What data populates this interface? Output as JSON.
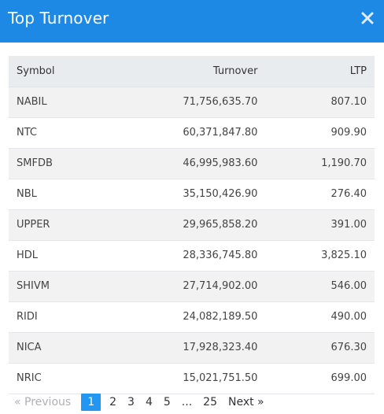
{
  "modal": {
    "title": "Top Turnover"
  },
  "table": {
    "headers": {
      "symbol": "Symbol",
      "turnover": "Turnover",
      "ltp": "LTP"
    },
    "rows": [
      {
        "symbol": "NABIL",
        "turnover": "71,756,635.70",
        "ltp": "807.10"
      },
      {
        "symbol": "NTC",
        "turnover": "60,371,847.80",
        "ltp": "909.90"
      },
      {
        "symbol": "SMFDB",
        "turnover": "46,995,983.60",
        "ltp": "1,190.70"
      },
      {
        "symbol": "NBL",
        "turnover": "35,150,426.90",
        "ltp": "276.40"
      },
      {
        "symbol": "UPPER",
        "turnover": "29,965,858.20",
        "ltp": "391.00"
      },
      {
        "symbol": "HDL",
        "turnover": "28,336,745.80",
        "ltp": "3,825.10"
      },
      {
        "symbol": "SHIVM",
        "turnover": "27,714,902.00",
        "ltp": "546.00"
      },
      {
        "symbol": "RIDI",
        "turnover": "24,082,189.50",
        "ltp": "490.00"
      },
      {
        "symbol": "NICA",
        "turnover": "17,928,323.40",
        "ltp": "676.30"
      },
      {
        "symbol": "NRIC",
        "turnover": "15,021,751.50",
        "ltp": "699.00"
      }
    ]
  },
  "pagination": {
    "previous": "« Previous",
    "next": "Next »",
    "pages": [
      "1",
      "2",
      "3",
      "4",
      "5"
    ],
    "ellipsis": "...",
    "last": "25",
    "current": "1"
  }
}
